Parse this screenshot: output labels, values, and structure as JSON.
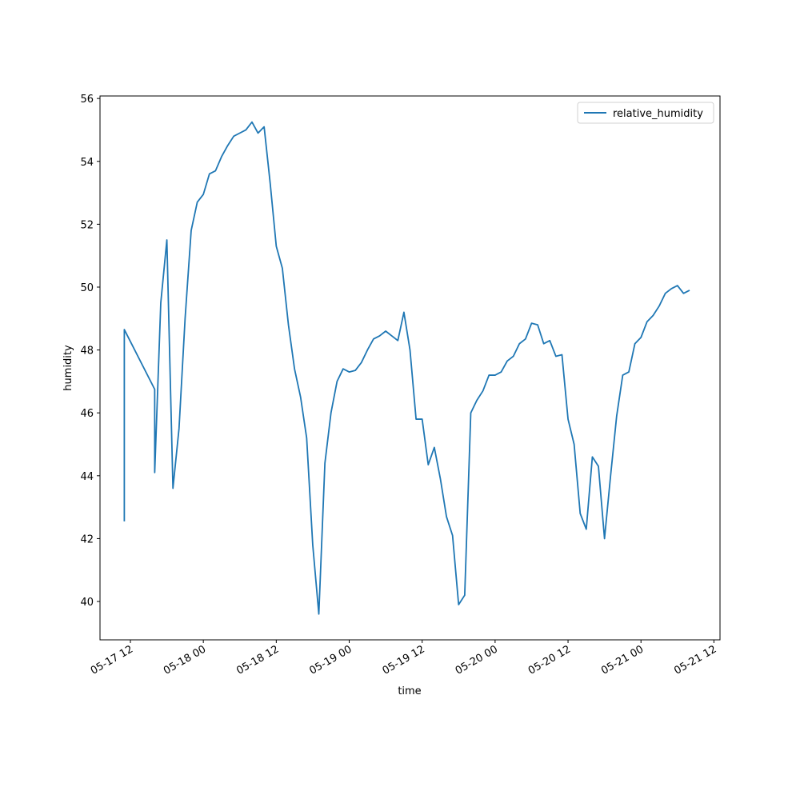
{
  "chart_data": {
    "type": "line",
    "x_label": "time",
    "y_label": "humidity",
    "x": [
      "05-17 11",
      "05-17 11",
      "05-17 16",
      "05-17 16",
      "05-17 17",
      "05-17 18",
      "05-17 19",
      "05-17 20",
      "05-17 21",
      "05-17 22",
      "05-17 23",
      "05-18 00",
      "05-18 01",
      "05-18 02",
      "05-18 03",
      "05-18 04",
      "05-18 05",
      "05-18 06",
      "05-18 07",
      "05-18 08",
      "05-18 09",
      "05-18 10",
      "05-18 11",
      "05-18 12",
      "05-18 13",
      "05-18 14",
      "05-18 15",
      "05-18 16",
      "05-18 17",
      "05-18 18",
      "05-18 19",
      "05-18 20",
      "05-18 21",
      "05-18 22",
      "05-18 23",
      "05-19 00",
      "05-19 01",
      "05-19 02",
      "05-19 03",
      "05-19 04",
      "05-19 05",
      "05-19 06",
      "05-19 07",
      "05-19 08",
      "05-19 09",
      "05-19 10",
      "05-19 11",
      "05-19 12",
      "05-19 13",
      "05-19 14",
      "05-19 15",
      "05-19 16",
      "05-19 17",
      "05-19 18",
      "05-19 19",
      "05-19 20",
      "05-19 21",
      "05-19 22",
      "05-19 23",
      "05-20 00",
      "05-20 01",
      "05-20 02",
      "05-20 03",
      "05-20 04",
      "05-20 05",
      "05-20 06",
      "05-20 07",
      "05-20 08",
      "05-20 09",
      "05-20 10",
      "05-20 11",
      "05-20 12",
      "05-20 13",
      "05-20 14",
      "05-20 15",
      "05-20 16",
      "05-20 17",
      "05-20 18",
      "05-20 19",
      "05-20 20",
      "05-20 21",
      "05-20 22",
      "05-20 23",
      "05-21 00",
      "05-21 01",
      "05-21 02",
      "05-21 03",
      "05-21 04",
      "05-21 05",
      "05-21 06",
      "05-21 07",
      "05-21 08"
    ],
    "series": [
      {
        "name": "relative_humidity",
        "color": "#1f77b4",
        "values": [
          42.55,
          48.65,
          46.75,
          44.1,
          49.5,
          51.5,
          43.6,
          45.5,
          49.0,
          51.8,
          52.7,
          52.95,
          53.6,
          53.7,
          54.15,
          54.5,
          54.8,
          54.9,
          55.0,
          55.25,
          54.9,
          55.1,
          53.3,
          51.3,
          50.6,
          48.8,
          47.4,
          46.5,
          45.2,
          41.8,
          39.6,
          44.4,
          46.0,
          47.0,
          47.4,
          47.3,
          47.35,
          47.6,
          48.0,
          48.35,
          48.45,
          48.6,
          48.45,
          48.3,
          49.2,
          48.0,
          45.8,
          45.8,
          44.35,
          44.9,
          43.9,
          42.7,
          42.1,
          39.9,
          40.2,
          46.0,
          46.4,
          46.7,
          47.2,
          47.2,
          47.3,
          47.65,
          47.8,
          48.2,
          48.35,
          48.85,
          48.8,
          48.2,
          48.3,
          47.8,
          47.85,
          45.8,
          45.0,
          42.8,
          42.3,
          44.6,
          44.3,
          42.0,
          44.0,
          45.9,
          47.2,
          47.3,
          48.2,
          48.4,
          48.9,
          49.1,
          49.4,
          49.8,
          49.95,
          50.05,
          49.8,
          49.9
        ]
      }
    ],
    "xlim": [
      "05-17 07",
      "05-21 13"
    ],
    "xticks": [
      "05-17 12",
      "05-18 00",
      "05-18 12",
      "05-19 00",
      "05-19 12",
      "05-20 00",
      "05-20 12",
      "05-21 00",
      "05-21 12"
    ],
    "ylim": [
      38.78,
      56.08
    ],
    "yticks": [
      40,
      42,
      44,
      46,
      48,
      50,
      52,
      54,
      56
    ],
    "legend": "upper right"
  }
}
